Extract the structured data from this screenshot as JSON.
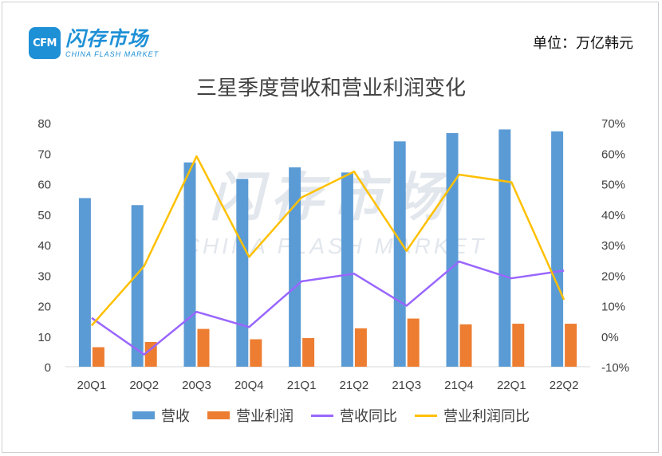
{
  "logo": {
    "badge": "CFM",
    "cn": "闪存市场",
    "en": "CHINA FLASH MARKET"
  },
  "unit_label": "单位：万亿韩元",
  "watermark": {
    "cn": "闪存市场",
    "en": "CHINA FLASH MARKET"
  },
  "chart_data": {
    "type": "bar",
    "title": "三星季度营收和营业利润变化",
    "categories": [
      "20Q1",
      "20Q2",
      "20Q3",
      "20Q4",
      "21Q1",
      "21Q2",
      "21Q3",
      "21Q4",
      "22Q1",
      "22Q2"
    ],
    "y_left": {
      "ylim": [
        0,
        80
      ],
      "ticks": [
        "0",
        "10",
        "20",
        "30",
        "40",
        "50",
        "60",
        "70",
        "80"
      ]
    },
    "y_right": {
      "ylim": [
        -10,
        70
      ],
      "ticks": [
        "-10%",
        "0%",
        "10%",
        "20%",
        "30%",
        "40%",
        "50%",
        "60%",
        "70%"
      ]
    },
    "series": [
      {
        "name": "营收",
        "type": "bar",
        "axis": "left",
        "color": "#5b9bd5",
        "values": [
          55.3,
          53.0,
          67.0,
          61.6,
          65.4,
          63.7,
          73.9,
          76.6,
          77.8,
          77.2
        ]
      },
      {
        "name": "营业利润",
        "type": "bar",
        "axis": "left",
        "color": "#ed7d31",
        "values": [
          6.4,
          8.1,
          12.4,
          9.0,
          9.4,
          12.6,
          15.8,
          13.9,
          14.1,
          14.1
        ]
      },
      {
        "name": "营收同比",
        "type": "line",
        "axis": "right",
        "color": "#9966ff",
        "values": [
          6,
          -6,
          8,
          3,
          18,
          20.5,
          10,
          24.5,
          19,
          21.5
        ]
      },
      {
        "name": "营业利润同比",
        "type": "line",
        "axis": "right",
        "color": "#ffc000",
        "values": [
          3.5,
          23,
          59,
          26,
          45.5,
          54,
          28,
          53,
          50.5,
          12
        ]
      }
    ],
    "legend_position": "bottom",
    "grid": false
  }
}
